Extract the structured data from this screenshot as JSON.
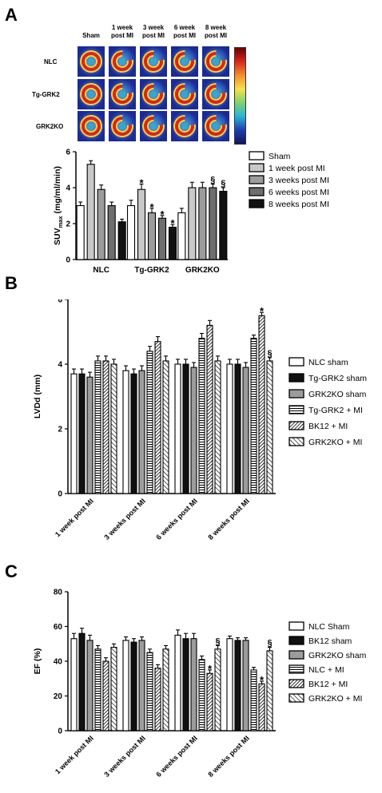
{
  "panels": {
    "a": "A",
    "b": "B",
    "c": "C"
  },
  "pet": {
    "columns": [
      "Sham",
      "1 week post MI",
      "3 week post MI",
      "6 week post MI",
      "8 week post MI"
    ],
    "columns_display": [
      "Sham",
      "1 week\npost MI",
      "3 week\npost MI",
      "6 week\npost MI",
      "8 week\npost MI"
    ],
    "rows": [
      "NLC",
      "Tg-GRK2",
      "GRK2KO"
    ],
    "scale_icon": "color-scale-bar"
  },
  "chart_data": [
    {
      "id": "suv",
      "type": "bar",
      "ylabel": "SUVmax (mg/ml/min)",
      "ylabel_main": "SUV",
      "ylabel_sub": "max",
      "ylabel_rest": " (mg/ml/min)",
      "ylim": [
        0,
        6
      ],
      "yticks": [
        "0",
        "2",
        "4",
        "6"
      ],
      "categories": [
        "NLC",
        "Tg-GRK2",
        "GRK2KO"
      ],
      "series": [
        {
          "name": "Sham",
          "color": "#ffffff",
          "pattern": "none",
          "values": [
            3.0,
            3.0,
            2.6
          ],
          "errors": [
            0.2,
            0.3,
            0.25
          ],
          "marks": [
            "",
            "",
            ""
          ]
        },
        {
          "name": "1 week post MI",
          "color": "#c8c8c8",
          "pattern": "none",
          "values": [
            5.3,
            3.9,
            4.0
          ],
          "errors": [
            0.2,
            0.3,
            0.3
          ],
          "marks": [
            "",
            "*",
            ""
          ]
        },
        {
          "name": "3 weeks post MI",
          "color": "#9c9c9c",
          "pattern": "none",
          "values": [
            3.9,
            2.6,
            4.0
          ],
          "errors": [
            0.25,
            0.25,
            0.3
          ],
          "marks": [
            "",
            "*",
            ""
          ]
        },
        {
          "name": "6 weeks post MI",
          "color": "#6e6e6e",
          "pattern": "none",
          "values": [
            3.0,
            2.3,
            4.0
          ],
          "errors": [
            0.2,
            0.15,
            0.2
          ],
          "marks": [
            "",
            "*",
            "§"
          ]
        },
        {
          "name": "8 weeks post MI",
          "color": "#111111",
          "pattern": "none",
          "values": [
            2.1,
            1.8,
            3.8
          ],
          "errors": [
            0.15,
            0.15,
            0.2
          ],
          "marks": [
            "",
            "*",
            "§"
          ]
        }
      ]
    },
    {
      "id": "lvdd",
      "type": "bar",
      "ylabel": "LVDd (mm)",
      "ylim": [
        0,
        6
      ],
      "yticks": [
        "0",
        "2",
        "4",
        "6"
      ],
      "categories": [
        "1 week post MI",
        "3 weeks post MI",
        "6 weeks post MI",
        "8 weeks post MI"
      ],
      "series": [
        {
          "name": "NLC sham",
          "color": "#ffffff",
          "pattern": "none",
          "values": [
            3.7,
            3.8,
            4.0,
            4.0
          ],
          "errors": [
            0.15,
            0.15,
            0.15,
            0.15
          ],
          "marks": [
            "",
            "",
            "",
            ""
          ]
        },
        {
          "name": "Tg-GRK2 sham",
          "color": "#111111",
          "pattern": "none",
          "values": [
            3.7,
            3.7,
            4.0,
            4.0
          ],
          "errors": [
            0.15,
            0.15,
            0.15,
            0.15
          ],
          "marks": [
            "",
            "",
            "",
            ""
          ]
        },
        {
          "name": "GRK2KO sham",
          "color": "#9c9c9c",
          "pattern": "none",
          "values": [
            3.6,
            3.8,
            3.9,
            3.9
          ],
          "errors": [
            0.15,
            0.15,
            0.15,
            0.15
          ],
          "marks": [
            "",
            "",
            "",
            ""
          ]
        },
        {
          "name": "Tg-GRK2 + MI",
          "color": "#ffffff",
          "pattern": "horizontal",
          "values": [
            4.1,
            4.4,
            4.8,
            4.8
          ],
          "errors": [
            0.15,
            0.15,
            0.15,
            0.1
          ],
          "marks": [
            "",
            "",
            "",
            ""
          ]
        },
        {
          "name": "BK12 + MI",
          "color": "#ffffff",
          "pattern": "diag-dense",
          "values": [
            4.1,
            4.7,
            5.2,
            5.5
          ],
          "errors": [
            0.15,
            0.15,
            0.15,
            0.1
          ],
          "marks": [
            "",
            "",
            "",
            "*"
          ]
        },
        {
          "name": "GRK2KO + MI",
          "color": "#ffffff",
          "pattern": "diag-sparse",
          "values": [
            4.0,
            4.1,
            4.1,
            4.1
          ],
          "errors": [
            0.15,
            0.15,
            0.15,
            0.1
          ],
          "marks": [
            "",
            "",
            "",
            "§"
          ]
        }
      ]
    },
    {
      "id": "ef",
      "type": "bar",
      "ylabel": "EF (%)",
      "ylim": [
        0,
        80
      ],
      "yticks": [
        "0",
        "20",
        "40",
        "60",
        "80"
      ],
      "categories": [
        "1 week post MI",
        "3 weeks post MI",
        "6 weeks post MI",
        "8 weeks post MI"
      ],
      "series": [
        {
          "name": "NLC Sham",
          "color": "#ffffff",
          "pattern": "none",
          "values": [
            53,
            52,
            55,
            53
          ],
          "errors": [
            3,
            2,
            3,
            1.5
          ],
          "marks": [
            "",
            "",
            "",
            ""
          ]
        },
        {
          "name": "BK12 sham",
          "color": "#111111",
          "pattern": "none",
          "values": [
            56,
            51,
            53,
            52
          ],
          "errors": [
            3,
            2,
            3,
            1.5
          ],
          "marks": [
            "",
            "",
            "",
            ""
          ]
        },
        {
          "name": "GRK2KO sham",
          "color": "#9c9c9c",
          "pattern": "none",
          "values": [
            52,
            52,
            53,
            52
          ],
          "errors": [
            3,
            2,
            3,
            1.5
          ],
          "marks": [
            "",
            "",
            "",
            ""
          ]
        },
        {
          "name": "NLC + MI",
          "color": "#ffffff",
          "pattern": "horizontal",
          "values": [
            47,
            45,
            41,
            35
          ],
          "errors": [
            2,
            2,
            2,
            1.5
          ],
          "marks": [
            "",
            "",
            "",
            ""
          ]
        },
        {
          "name": "BK12 + MI",
          "color": "#ffffff",
          "pattern": "diag-dense",
          "values": [
            40,
            36,
            33,
            27
          ],
          "errors": [
            2,
            2,
            2,
            1.5
          ],
          "marks": [
            "",
            "",
            "*",
            "*"
          ]
        },
        {
          "name": "GRK2KO + MI",
          "color": "#ffffff",
          "pattern": "diag-sparse",
          "values": [
            48,
            47,
            47,
            46
          ],
          "errors": [
            2,
            2,
            2,
            2
          ],
          "marks": [
            "",
            "",
            "§",
            "§"
          ]
        }
      ]
    }
  ]
}
